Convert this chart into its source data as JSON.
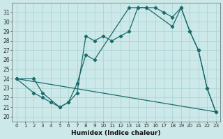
{
  "xlabel": "Humidex (Indice chaleur)",
  "background_color": "#cce8e8",
  "line_color": "#1a6b6b",
  "grid_color": "#b0d8d8",
  "xlim": [
    -0.5,
    23.5
  ],
  "ylim": [
    19.5,
    32.0
  ],
  "yticks": [
    20,
    21,
    22,
    23,
    24,
    25,
    26,
    27,
    28,
    29,
    30,
    31
  ],
  "xticks": [
    0,
    1,
    2,
    3,
    4,
    5,
    6,
    7,
    8,
    9,
    10,
    11,
    12,
    13,
    14,
    15,
    16,
    17,
    18,
    19,
    20,
    21,
    22,
    23
  ],
  "line_straight": {
    "x": [
      0,
      23
    ],
    "y": [
      24.0,
      20.5
    ]
  },
  "line_smooth": {
    "x": [
      0,
      2,
      3,
      5,
      6,
      7,
      8,
      9,
      13,
      14,
      15,
      18,
      19,
      20,
      21,
      22,
      23
    ],
    "y": [
      24.0,
      24.0,
      22.5,
      21.0,
      21.5,
      23.5,
      26.5,
      26.0,
      31.5,
      31.5,
      31.5,
      29.5,
      31.5,
      29.0,
      27.0,
      23.0,
      20.5
    ]
  },
  "line_jagged": {
    "x": [
      0,
      2,
      3,
      4,
      5,
      6,
      7,
      8,
      9,
      10,
      11,
      12,
      13,
      14,
      15,
      16,
      17,
      18,
      19,
      20,
      21,
      22,
      23
    ],
    "y": [
      24.0,
      22.5,
      22.0,
      21.5,
      21.0,
      21.5,
      22.5,
      28.5,
      28.0,
      28.5,
      28.0,
      28.5,
      29.0,
      31.5,
      31.5,
      31.5,
      31.0,
      30.5,
      31.5,
      29.0,
      27.0,
      23.0,
      20.5
    ]
  }
}
